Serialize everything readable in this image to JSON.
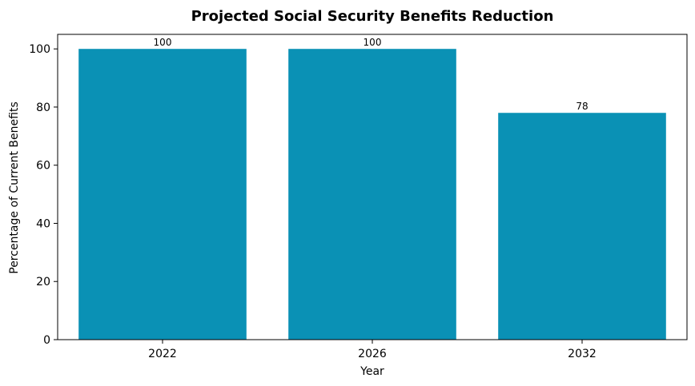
{
  "chart_data": {
    "type": "bar",
    "title": "Projected Social Security Benefits Reduction",
    "xlabel": "Year",
    "ylabel": "Percentage of Current Benefits",
    "categories": [
      "2022",
      "2026",
      "2032"
    ],
    "values": [
      100,
      100,
      78
    ],
    "data_labels": [
      "100",
      "100",
      "78"
    ],
    "ylim": [
      0,
      105
    ],
    "yticks": [
      0,
      20,
      40,
      60,
      80,
      100
    ],
    "grid": false,
    "legend": "none",
    "bar_color": "#0a91b5"
  }
}
